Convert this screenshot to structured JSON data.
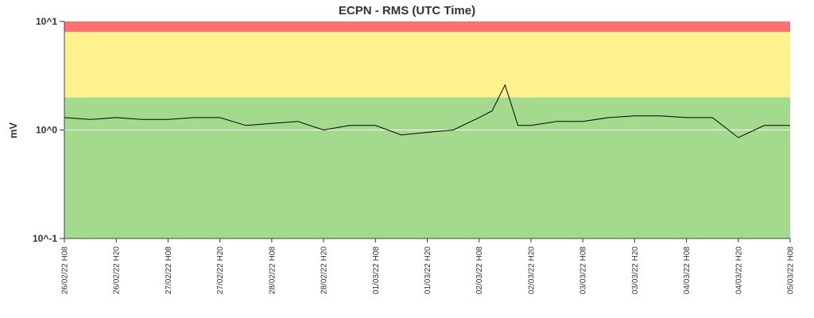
{
  "chart_data": {
    "type": "line",
    "title": "ECPN - RMS (UTC Time)",
    "ylabel": "mV",
    "xlabel": "",
    "y_scale": "log",
    "ylim": [
      0.1,
      10
    ],
    "yticks": [
      {
        "value": 10,
        "label": "10^1"
      },
      {
        "value": 1,
        "label": "10^0"
      },
      {
        "value": 0.1,
        "label": "10^-1"
      }
    ],
    "x_tick_labels": [
      "26/02/22 H08",
      "26/02/22 H20",
      "27/02/22 H08",
      "27/02/22 H20",
      "28/02/22 H08",
      "28/02/22 H20",
      "01/03/22 H08",
      "01/03/22 H20",
      "02/03/22 H08",
      "02/03/22 H20",
      "03/03/22 H08",
      "03/03/22 H20",
      "04/03/22 H08",
      "04/03/22 H20",
      "05/03/22 H08"
    ],
    "x_range": [
      "26/02/22 H08",
      "05/03/22 H08"
    ],
    "threshold_bands": [
      {
        "from": 0.1,
        "to": 2.0,
        "color": "#a3da8d"
      },
      {
        "from": 2.0,
        "to": 8.0,
        "color": "#fdf28e"
      },
      {
        "from": 8.0,
        "to": 10,
        "color": "#fd7271"
      }
    ],
    "grid": false,
    "series": [
      {
        "color": "#000000",
        "x": [
          "26/02/22 H08",
          "26/02/22 H14",
          "26/02/22 H20",
          "27/02/22 H02",
          "27/02/22 H08",
          "27/02/22 H14",
          "27/02/22 H20",
          "28/02/22 H02",
          "28/02/22 H08",
          "28/02/22 H14",
          "28/02/22 H20",
          "01/03/22 H02",
          "01/03/22 H08",
          "01/03/22 H14",
          "01/03/22 H20",
          "02/03/22 H02",
          "02/03/22 H08",
          "02/03/22 H11",
          "02/03/22 H14",
          "02/03/22 H17",
          "02/03/22 H20",
          "03/03/22 H02",
          "03/03/22 H08",
          "03/03/22 H14",
          "03/03/22 H20",
          "04/03/22 H02",
          "04/03/22 H08",
          "04/03/22 H14",
          "04/03/22 H20",
          "05/03/22 H02",
          "05/03/22 H08"
        ],
        "values": [
          1.3,
          1.25,
          1.3,
          1.25,
          1.25,
          1.3,
          1.3,
          1.1,
          1.15,
          1.2,
          1.0,
          1.1,
          1.1,
          0.9,
          0.95,
          1.0,
          1.3,
          1.5,
          2.6,
          1.1,
          1.1,
          1.2,
          1.2,
          1.3,
          1.35,
          1.35,
          1.3,
          1.3,
          0.85,
          1.1,
          1.1
        ]
      }
    ]
  }
}
